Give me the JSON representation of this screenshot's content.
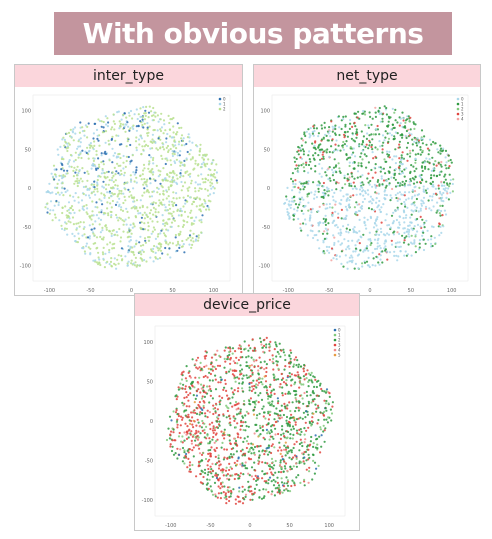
{
  "title": "With obvious patterns",
  "chart_data": [
    {
      "type": "scatter",
      "title": "inter_type",
      "x_ticks": [
        "-100",
        "-50",
        "0",
        "50",
        "100"
      ],
      "y_ticks": [
        "100",
        "50",
        "0",
        "-50",
        "-100"
      ],
      "xlim": [
        -120,
        120
      ],
      "ylim": [
        -120,
        120
      ],
      "legend_labels": [
        "0",
        "1",
        "2"
      ],
      "colors": [
        "#2b6fb0",
        "#a9d7ea",
        "#b9e08f"
      ],
      "weights": [
        0.07,
        0.23,
        0.7
      ]
    },
    {
      "type": "scatter",
      "title": "net_type",
      "x_ticks": [
        "-100",
        "-50",
        "0",
        "50",
        "100"
      ],
      "y_ticks": [
        "100",
        "50",
        "0",
        "-50",
        "-100"
      ],
      "xlim": [
        -120,
        120
      ],
      "ylim": [
        -120,
        120
      ],
      "legend_labels": [
        "0",
        "1",
        "2",
        "3",
        "4"
      ],
      "colors": [
        "#a9d7ea",
        "#2f9a41",
        "#7fc97a",
        "#e0443e",
        "#f3a3a0"
      ],
      "weights": [
        0.45,
        0.35,
        0.08,
        0.08,
        0.04
      ]
    },
    {
      "type": "scatter",
      "title": "device_price",
      "x_ticks": [
        "-100",
        "-50",
        "0",
        "50",
        "100"
      ],
      "y_ticks": [
        "100",
        "50",
        "0",
        "-50",
        "-100"
      ],
      "xlim": [
        -120,
        120
      ],
      "ylim": [
        -120,
        120
      ],
      "legend_labels": [
        "0",
        "1",
        "2",
        "3",
        "4",
        "5"
      ],
      "colors": [
        "#2b6fb0",
        "#7fc97a",
        "#2f9a41",
        "#e0443e",
        "#f08a8a",
        "#e69b40"
      ],
      "weights": [
        0.04,
        0.18,
        0.38,
        0.34,
        0.04,
        0.02
      ]
    }
  ]
}
